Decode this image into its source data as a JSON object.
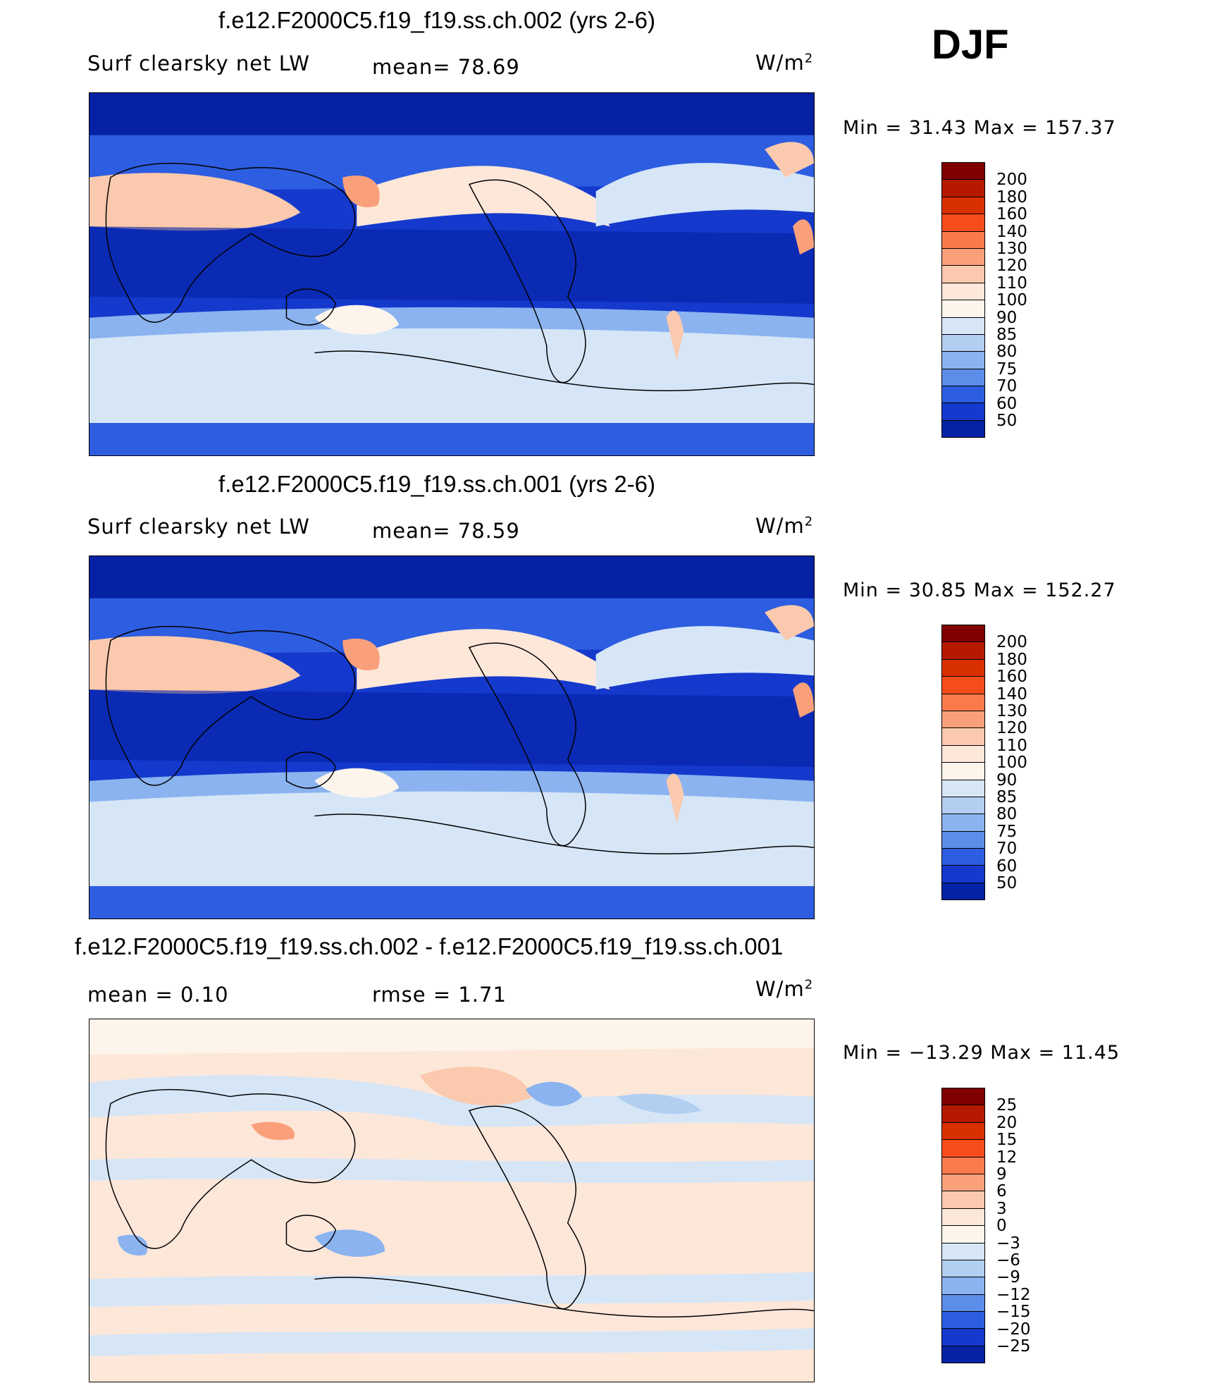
{
  "header": {
    "season": "DJF",
    "units_sup": "2"
  },
  "panels": [
    {
      "title": "f.e12.F2000C5.f19_f19.ss.ch.002 (yrs 2-6)",
      "variable": "Surf clearsky net LW",
      "stat1": "mean=   78.69",
      "stat2": "",
      "units": "W/m",
      "minmax": "Min  =   31.43  Max  =  157.37",
      "scale": "abs"
    },
    {
      "title": "f.e12.F2000C5.f19_f19.ss.ch.001 (yrs 2-6)",
      "variable": "Surf clearsky net LW",
      "stat1": "mean=   78.59",
      "stat2": "",
      "units": "W/m",
      "minmax": "Min  =   30.85  Max  =  152.27",
      "scale": "abs"
    },
    {
      "title": "f.e12.F2000C5.f19_f19.ss.ch.002 - f.e12.F2000C5.f19_f19.ss.ch.001",
      "variable": "mean  =     0.10",
      "stat1": "rmse  =     1.71",
      "stat2": "",
      "units": "W/m",
      "minmax": "Min  = −13.29  Max  =    11.45",
      "scale": "diff"
    }
  ],
  "colorbars": {
    "abs": {
      "levels": [
        "200",
        "180",
        "160",
        "140",
        "130",
        "120",
        "110",
        "100",
        "90",
        "85",
        "80",
        "75",
        "70",
        "60",
        "50"
      ],
      "colors": [
        "#800000",
        "#b51a00",
        "#d93000",
        "#f74c1c",
        "#fa7a4c",
        "#f9a07b",
        "#fbc9ad",
        "#fde7d9",
        "#fdf5ec",
        "#d6e6f7",
        "#b2cff2",
        "#8ab3f0",
        "#5b8de9",
        "#2d5de0",
        "#1439cc",
        "#0522a4"
      ]
    },
    "diff": {
      "levels": [
        "25",
        "20",
        "15",
        "12",
        "9",
        "6",
        "3",
        "0",
        "−3",
        "−6",
        "−9",
        "−12",
        "−15",
        "−20",
        "−25"
      ],
      "colors": [
        "#800000",
        "#b51a00",
        "#d93000",
        "#f74c1c",
        "#fa7a4c",
        "#f9a07b",
        "#fbc9ad",
        "#fde7d9",
        "#fdf5ec",
        "#d6e6f7",
        "#b2cff2",
        "#8ab3f0",
        "#5b8de9",
        "#2d5de0",
        "#1439cc",
        "#0522a4"
      ]
    }
  }
}
